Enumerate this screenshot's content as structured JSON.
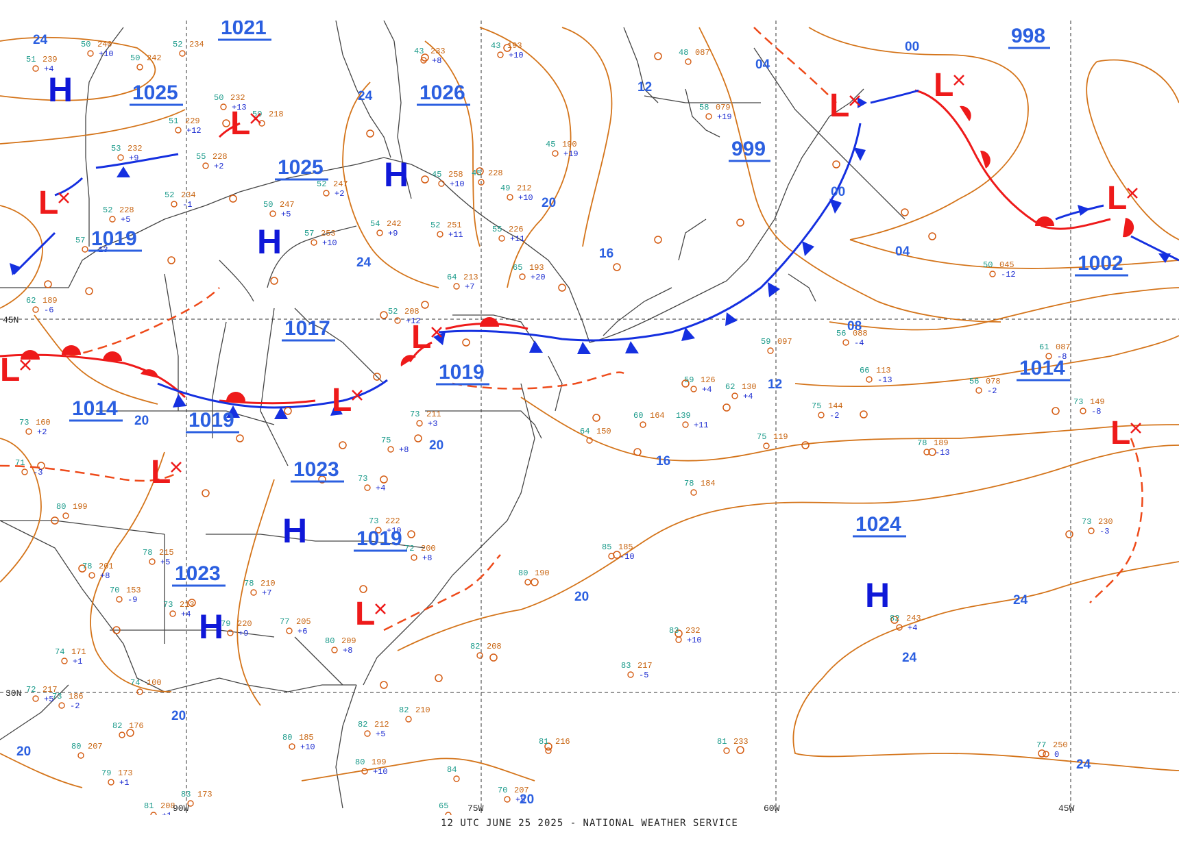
{
  "caption": "12 UTC JUNE 25 2025 - NATIONAL WEATHER SERVICE",
  "colors": {
    "isobar": "#d4741a",
    "isobar_label": "#2b5fe0",
    "high": "#0f18d8",
    "low": "#ee1a1a",
    "cold_front": "#1530e0",
    "warm_front": "#ee1a1a",
    "trough": "#ee4a1a",
    "border": "#444444",
    "grid": "#333333"
  },
  "grid_labels": [
    {
      "id": "lat45",
      "text": "45N"
    },
    {
      "id": "lat30",
      "text": "30N"
    },
    {
      "id": "lon90",
      "text": "90W"
    },
    {
      "id": "lon75",
      "text": "75W"
    },
    {
      "id": "lon60",
      "text": "60W"
    },
    {
      "id": "lon45",
      "text": "45W"
    }
  ],
  "pressure_centers": [
    {
      "type": "H"
    },
    {
      "type": "H"
    },
    {
      "type": "H"
    },
    {
      "type": "H"
    },
    {
      "type": "H"
    },
    {
      "type": "H"
    },
    {
      "type": "L"
    },
    {
      "type": "L"
    },
    {
      "type": "L"
    },
    {
      "type": "L"
    },
    {
      "type": "L"
    },
    {
      "type": "L"
    },
    {
      "type": "L"
    },
    {
      "type": "L"
    },
    {
      "type": "L"
    },
    {
      "type": "L"
    },
    {
      "type": "L"
    }
  ],
  "isobar_labels": [
    "1021",
    "1025",
    "1025",
    "1026",
    "1019",
    "1017",
    "1019",
    "1014",
    "1019",
    "1023",
    "1019",
    "1023",
    "999",
    "998",
    "1002",
    "1014",
    "1024"
  ],
  "isobar_small_labels": [
    "24",
    "24",
    "24",
    "12",
    "20",
    "16",
    "00",
    "04",
    "04",
    "00",
    "08",
    "12",
    "16",
    "20",
    "20",
    "20",
    "20",
    "24",
    "24",
    "24",
    "20",
    "20"
  ],
  "stations": [
    {
      "t": "50",
      "p": "240",
      "d": "+10"
    },
    {
      "t": "51",
      "p": "239",
      "d": "+4"
    },
    {
      "t": "52",
      "p": "234",
      "d": ""
    },
    {
      "t": "50",
      "p": "242",
      "d": ""
    },
    {
      "t": "50",
      "p": "232",
      "d": "+13"
    },
    {
      "t": "50",
      "p": "218",
      "d": ""
    },
    {
      "t": "51",
      "p": "229",
      "d": "+12"
    },
    {
      "t": "53",
      "p": "232",
      "d": "+9"
    },
    {
      "t": "55",
      "p": "228",
      "d": "+2"
    },
    {
      "t": "52",
      "p": "228",
      "d": "+5"
    },
    {
      "t": "57",
      "p": "",
      "d": "-13"
    },
    {
      "t": "62",
      "p": "189",
      "d": "-6"
    },
    {
      "t": "43",
      "p": "233",
      "d": "+8"
    },
    {
      "t": "43",
      "p": "193",
      "d": "+10"
    },
    {
      "t": "48",
      "p": "087",
      "d": ""
    },
    {
      "t": "58",
      "p": "079",
      "d": "+19"
    },
    {
      "t": "45",
      "p": "190",
      "d": "+19"
    },
    {
      "t": "49",
      "p": "212",
      "d": "+10"
    },
    {
      "t": "45",
      "p": "258",
      "d": "+10"
    },
    {
      "t": "45",
      "p": "228",
      "d": ""
    },
    {
      "t": "52",
      "p": "247",
      "d": "+2"
    },
    {
      "t": "52",
      "p": "234",
      "d": "-1"
    },
    {
      "t": "50",
      "p": "247",
      "d": "+5"
    },
    {
      "t": "57",
      "p": "253",
      "d": "+10"
    },
    {
      "t": "54",
      "p": "242",
      "d": "+9"
    },
    {
      "t": "52",
      "p": "251",
      "d": "+11"
    },
    {
      "t": "55",
      "p": "226",
      "d": "+11"
    },
    {
      "t": "64",
      "p": "213",
      "d": "+7"
    },
    {
      "t": "65",
      "p": "193",
      "d": "+20"
    },
    {
      "t": "52",
      "p": "208",
      "d": "+12"
    },
    {
      "t": "59",
      "p": "097",
      "d": ""
    },
    {
      "t": "56",
      "p": "088",
      "d": "-4"
    },
    {
      "t": "50",
      "p": "045",
      "d": "-12"
    },
    {
      "t": "61",
      "p": "087",
      "d": "-8"
    },
    {
      "t": "66",
      "p": "113",
      "d": "-13"
    },
    {
      "t": "56",
      "p": "078",
      "d": "-2"
    },
    {
      "t": "59",
      "p": "126",
      "d": "+4"
    },
    {
      "t": "62",
      "p": "130",
      "d": "+4"
    },
    {
      "t": "75",
      "p": "144",
      "d": "-2"
    },
    {
      "t": "73",
      "p": "149",
      "d": "-8"
    },
    {
      "t": "60",
      "p": "164",
      "d": ""
    },
    {
      "t": "139",
      "p": "",
      "d": "+11"
    },
    {
      "t": "64",
      "p": "150",
      "d": ""
    },
    {
      "t": "75",
      "p": "119",
      "d": ""
    },
    {
      "t": "78",
      "p": "189",
      "d": "-13"
    },
    {
      "t": "78",
      "p": "184",
      "d": ""
    },
    {
      "t": "73",
      "p": "230",
      "d": "-3"
    },
    {
      "t": "85",
      "p": "185",
      "d": "-10"
    },
    {
      "t": "80",
      "p": "190",
      "d": ""
    },
    {
      "t": "82",
      "p": "243",
      "d": "+4"
    },
    {
      "t": "82",
      "p": "208",
      "d": ""
    },
    {
      "t": "83",
      "p": "217",
      "d": "-5"
    },
    {
      "t": "83",
      "p": "232",
      "d": "+10"
    },
    {
      "t": "81",
      "p": "216",
      "d": ""
    },
    {
      "t": "81",
      "p": "233",
      "d": ""
    },
    {
      "t": "77",
      "p": "250",
      "d": "0"
    },
    {
      "t": "73",
      "p": "211",
      "d": "+3"
    },
    {
      "t": "75",
      "p": "",
      "d": "+8"
    },
    {
      "t": "73",
      "p": "",
      "d": "+4"
    },
    {
      "t": "73",
      "p": "222",
      "d": "+10"
    },
    {
      "t": "72",
      "p": "200",
      "d": "+8"
    },
    {
      "t": "78",
      "p": "215",
      "d": "+5"
    },
    {
      "t": "78",
      "p": "201",
      "d": "+8"
    },
    {
      "t": "79",
      "p": "220",
      "d": "+9"
    },
    {
      "t": "78",
      "p": "210",
      "d": "+7"
    },
    {
      "t": "77",
      "p": "205",
      "d": "+6"
    },
    {
      "t": "80",
      "p": "209",
      "d": "+8"
    },
    {
      "t": "82",
      "p": "210",
      "d": ""
    },
    {
      "t": "82",
      "p": "212",
      "d": "+5"
    },
    {
      "t": "80",
      "p": "199",
      "d": "+10"
    },
    {
      "t": "80",
      "p": "185",
      "d": "+10"
    },
    {
      "t": "80",
      "p": "199",
      "d": ""
    },
    {
      "t": "74",
      "p": "171",
      "d": "+1"
    },
    {
      "t": "73",
      "p": "186",
      "d": "-2"
    },
    {
      "t": "71",
      "p": "",
      "d": "-3"
    },
    {
      "t": "73",
      "p": "160",
      "d": "+2"
    },
    {
      "t": "70",
      "p": "153",
      "d": "-9"
    },
    {
      "t": "73",
      "p": "213",
      "d": "+4"
    },
    {
      "t": "72",
      "p": "217",
      "d": "+5"
    },
    {
      "t": "74",
      "p": "100",
      "d": ""
    },
    {
      "t": "80",
      "p": "207",
      "d": ""
    },
    {
      "t": "79",
      "p": "173",
      "d": "+1"
    },
    {
      "t": "83",
      "p": "173",
      "d": ""
    },
    {
      "t": "82",
      "p": "176",
      "d": ""
    },
    {
      "t": "84",
      "p": "",
      "d": ""
    },
    {
      "t": "70",
      "p": "207",
      "d": "+5"
    },
    {
      "t": "81",
      "p": "208",
      "d": "+1"
    },
    {
      "t": "65",
      "p": "",
      "d": ""
    },
    {
      "t": "74",
      "p": "",
      "d": ""
    }
  ]
}
